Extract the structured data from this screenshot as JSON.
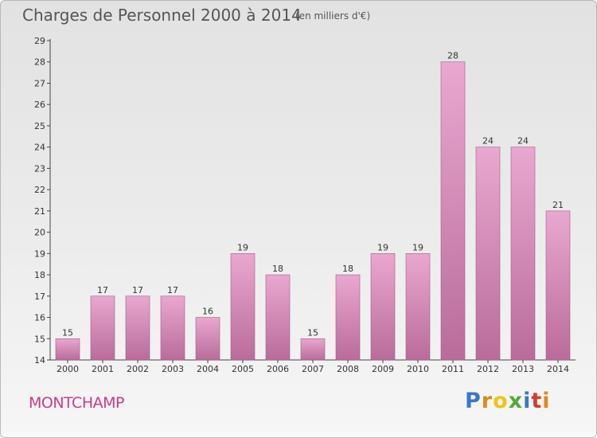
{
  "header": {
    "title": "Charges de Personnel 2000 à 2014",
    "subtitle": "(en milliers d'€)"
  },
  "footer": {
    "commune": "MONTCHAMP",
    "brand": "Proxiti"
  },
  "colors": {
    "bar_light": "#e9a8d0",
    "bar_dark": "#b96c9a",
    "axis": "#444444",
    "label": "#333333",
    "commune": "#c93c8a"
  },
  "chart_data": {
    "type": "bar",
    "categories": [
      "2000",
      "2001",
      "2002",
      "2003",
      "2004",
      "2005",
      "2006",
      "2007",
      "2008",
      "2009",
      "2010",
      "2011",
      "2012",
      "2013",
      "2014"
    ],
    "values": [
      15,
      17,
      17,
      17,
      16,
      19,
      18,
      15,
      18,
      19,
      19,
      28,
      24,
      24,
      21
    ],
    "ylim": [
      14,
      29
    ],
    "yticks": [
      14,
      15,
      16,
      17,
      18,
      19,
      20,
      21,
      22,
      23,
      24,
      25,
      26,
      27,
      28,
      29
    ],
    "title": "Charges de Personnel 2000 à 2014",
    "subtitle": "(en milliers d'€)",
    "xlabel": "",
    "ylabel": "",
    "grid": false,
    "data_labels": true
  }
}
